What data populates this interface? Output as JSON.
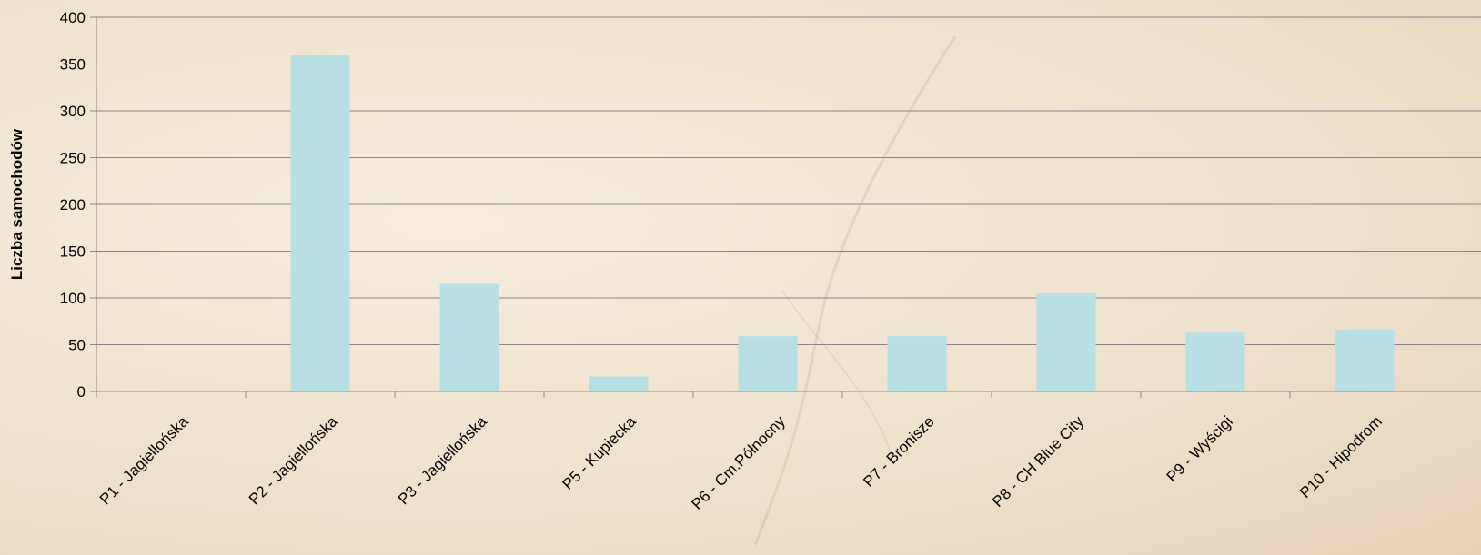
{
  "chart_data": {
    "type": "bar",
    "categories": [
      "P1 - Jagiellońska",
      "P2 - Jagiellońska",
      "P3 - Jagiellońska",
      "P5 - Kupiecka",
      "P6 - Cm.Północny",
      "P7 - Bronisze",
      "P8 - CH Blue City",
      "P9 - Wyścigi",
      "P10 - Hipodrom"
    ],
    "values": [
      0,
      360,
      115,
      16,
      59,
      59,
      105,
      63,
      66
    ],
    "title": "",
    "xlabel": "",
    "ylabel": "Liczba samochodów",
    "ylim": [
      0,
      400
    ],
    "yticks": [
      0,
      50,
      100,
      150,
      200,
      250,
      300,
      350,
      400
    ],
    "grid": true,
    "legend": "none",
    "colors": {
      "bar": "#b8dfe3",
      "grid": "#868686",
      "axis": "#868686"
    }
  }
}
